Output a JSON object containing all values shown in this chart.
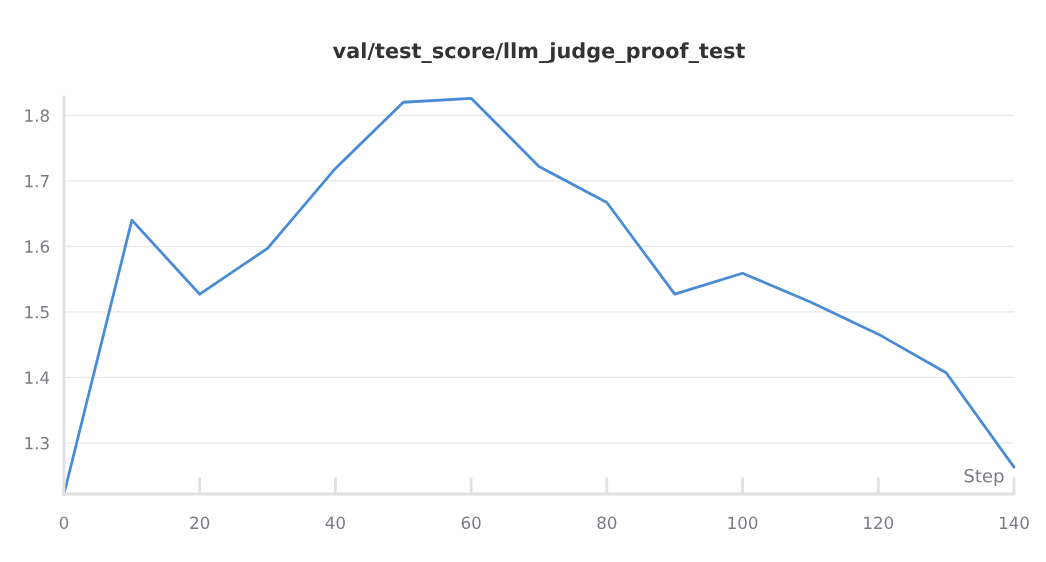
{
  "chart_data": {
    "type": "line",
    "title": "val/test_score/llm_judge_proof_test",
    "xlabel": "Step",
    "x": [
      0,
      10,
      20,
      30,
      40,
      50,
      60,
      70,
      80,
      90,
      100,
      110,
      120,
      130,
      140
    ],
    "series": [
      {
        "color": "#4a8bd6",
        "values": [
          1.222,
          1.64,
          1.527,
          1.597,
          1.719,
          1.82,
          1.826,
          1.722,
          1.667,
          1.527,
          1.559,
          1.515,
          1.466,
          1.407,
          1.263
        ]
      }
    ],
    "xlim": [
      0,
      140
    ],
    "ylim": [
      1.222,
      1.828
    ],
    "xticks": [
      0,
      20,
      40,
      60,
      80,
      100,
      120,
      140
    ],
    "yticks": [
      1.3,
      1.4,
      1.5,
      1.6,
      1.7,
      1.8
    ],
    "grid": "y",
    "marker": "none",
    "line_style": "solid"
  }
}
